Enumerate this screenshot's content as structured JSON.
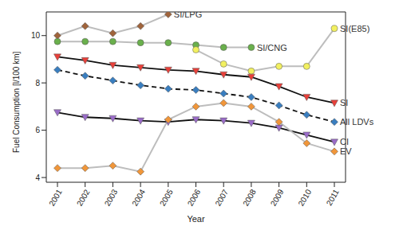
{
  "chart_data": {
    "type": "line",
    "x_label": "Year",
    "y_label": "Fuel Consumption [l/100 km]",
    "categories": [
      "2001",
      "2002",
      "2003",
      "2004",
      "2005",
      "2006",
      "2007",
      "2008",
      "2009",
      "2010",
      "2011"
    ],
    "ylim": [
      3.8,
      11
    ],
    "yticks": [
      4,
      6,
      8,
      10
    ],
    "grid": false,
    "series": [
      {
        "name": "SI/LPG",
        "color": "#a0643c",
        "marker": "diamond",
        "line_style": "light",
        "values": [
          10.0,
          10.4,
          10.1,
          10.4,
          10.9,
          null,
          null,
          null,
          null,
          null,
          null
        ]
      },
      {
        "name": "SI/CNG",
        "color": "#6ab04c",
        "marker": "circle",
        "line_style": "light",
        "values": [
          9.75,
          9.75,
          9.75,
          9.7,
          9.7,
          9.6,
          9.5,
          9.5,
          null,
          null,
          null
        ]
      },
      {
        "name": "SI(E85)",
        "color": "#f2f060",
        "marker": "circle",
        "line_style": "light",
        "values": [
          null,
          null,
          null,
          null,
          null,
          9.4,
          8.8,
          8.5,
          8.7,
          8.7,
          10.3
        ]
      },
      {
        "name": "SI",
        "color": "#e8403a",
        "marker": "triangle",
        "line_style": "solid",
        "values": [
          9.1,
          8.95,
          8.75,
          8.65,
          8.55,
          8.5,
          8.35,
          8.25,
          7.85,
          7.4,
          7.15
        ]
      },
      {
        "name": "All LDVs",
        "color": "#3a7ebf",
        "marker": "diamond",
        "line_style": "dashed",
        "values": [
          8.55,
          8.3,
          8.1,
          7.9,
          7.75,
          7.7,
          7.55,
          7.4,
          7.05,
          6.65,
          6.35
        ]
      },
      {
        "name": "CI",
        "color": "#9a6cc8",
        "marker": "triangle",
        "line_style": "solid",
        "values": [
          6.75,
          6.55,
          6.5,
          6.4,
          6.35,
          6.45,
          6.4,
          6.3,
          6.1,
          5.8,
          5.5
        ]
      },
      {
        "name": "EV",
        "color": "#f0963a",
        "marker": "diamond",
        "line_style": "light",
        "values": [
          4.4,
          4.4,
          4.5,
          4.25,
          6.45,
          7.0,
          7.15,
          7.0,
          6.35,
          5.45,
          5.1
        ]
      }
    ]
  }
}
